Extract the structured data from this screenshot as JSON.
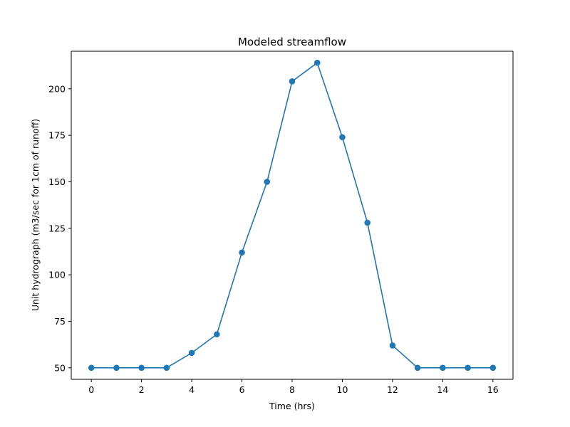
{
  "chart_data": {
    "type": "line",
    "title": "Modeled streamflow",
    "xlabel": "Time (hrs)",
    "ylabel": "Unit hydrograph (m3/sec for 1cm of runoff)",
    "xlim": [
      -0.8,
      16.8
    ],
    "ylim": [
      43.8,
      220.2
    ],
    "x_ticks": [
      0,
      2,
      4,
      6,
      8,
      10,
      12,
      14,
      16
    ],
    "y_ticks": [
      50,
      75,
      100,
      125,
      150,
      175,
      200
    ],
    "grid": false,
    "legend": "none",
    "series": [
      {
        "color": "#1f77b4",
        "marker": "circle",
        "x": [
          0,
          1,
          2,
          3,
          4,
          5,
          6,
          7,
          8,
          9,
          10,
          11,
          12,
          13,
          14,
          15,
          16
        ],
        "y": [
          50,
          50,
          50,
          50,
          58,
          68,
          112,
          150,
          204,
          214,
          174,
          128,
          62,
          50,
          50,
          50,
          50
        ]
      }
    ]
  }
}
